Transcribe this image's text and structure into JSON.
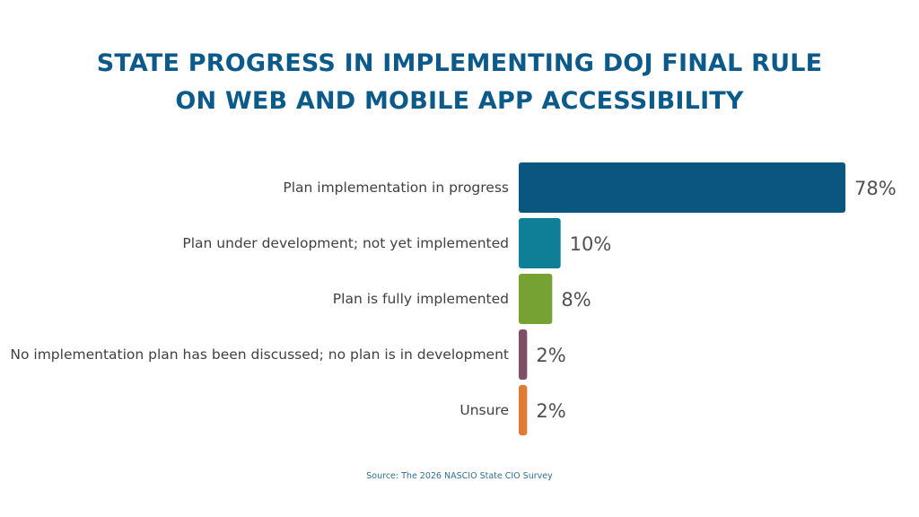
{
  "title": {
    "line1": "STATE PROGRESS IN IMPLEMENTING DOJ FINAL RULE",
    "line2": "ON WEB AND MOBILE APP ACCESSIBILITY"
  },
  "source": "Source: The 2026 NASCIO State CIO Survey",
  "chart_data": {
    "type": "bar",
    "orientation": "horizontal",
    "title": "STATE PROGRESS IN IMPLEMENTING DOJ FINAL RULE ON WEB AND MOBILE APP ACCESSIBILITY",
    "categories": [
      "Plan implementation in progress",
      "Plan under development; not yet implemented",
      "Plan is fully implemented",
      "No implementation plan has been discussed; no plan is in development",
      "Unsure"
    ],
    "values": [
      78,
      10,
      8,
      2,
      2
    ],
    "data_labels": [
      "78%",
      "10%",
      "8%",
      "2%",
      "2%"
    ],
    "colors": [
      "#0b5680",
      "#0e7f96",
      "#76a234",
      "#7d5068",
      "#e07a35"
    ],
    "xlabel": "",
    "ylabel": "",
    "xlim": [
      0,
      78
    ],
    "grid": false,
    "legend": "none"
  }
}
